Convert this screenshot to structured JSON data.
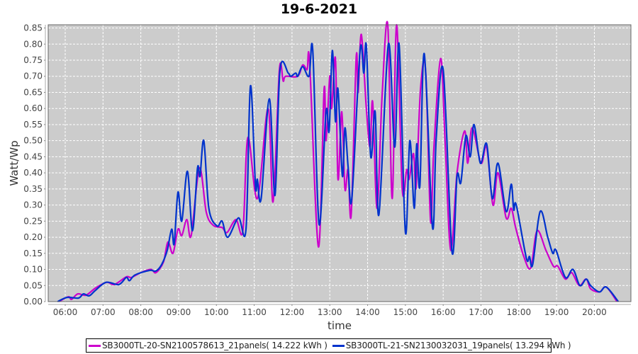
{
  "chart_data": {
    "type": "line",
    "title": "19-6-2021",
    "xlabel": "time",
    "ylabel": "Watt/Wp",
    "xlim": [
      "05:33",
      "20:58"
    ],
    "ylim": [
      0,
      0.86
    ],
    "x_ticks": [
      "06:00",
      "07:00",
      "08:00",
      "09:00",
      "10:00",
      "11:00",
      "12:00",
      "13:00",
      "14:00",
      "15:00",
      "16:00",
      "17:00",
      "18:00",
      "19:00",
      "20:00"
    ],
    "y_ticks": [
      "0.00",
      "0.05",
      "0.10",
      "0.15",
      "0.20",
      "0.25",
      "0.30",
      "0.35",
      "0.40",
      "0.45",
      "0.50",
      "0.55",
      "0.60",
      "0.65",
      "0.70",
      "0.75",
      "0.80",
      "0.85"
    ],
    "grid": true,
    "legend_position": "bottom",
    "plot_background": "#cccccc",
    "series": [
      {
        "name": "SB3000TL-20-SN2100578613_21panels( 14.222 kWh )",
        "color": "#cc00cc",
        "points": [
          [
            "05:50",
            0
          ],
          [
            "06:05",
            0.015
          ],
          [
            "06:10",
            0.007
          ],
          [
            "06:20",
            0.024
          ],
          [
            "06:33",
            0.02
          ],
          [
            "06:48",
            0.042
          ],
          [
            "07:06",
            0.06
          ],
          [
            "07:18",
            0.053
          ],
          [
            "07:37",
            0.077
          ],
          [
            "07:45",
            0.075
          ],
          [
            "08:00",
            0.09
          ],
          [
            "08:16",
            0.1
          ],
          [
            "08:24",
            0.09
          ],
          [
            "08:36",
            0.123
          ],
          [
            "08:43",
            0.185
          ],
          [
            "08:51",
            0.15
          ],
          [
            "08:59",
            0.225
          ],
          [
            "09:05",
            0.205
          ],
          [
            "09:13",
            0.255
          ],
          [
            "09:20",
            0.205
          ],
          [
            "09:33",
            0.415
          ],
          [
            "09:44",
            0.277
          ],
          [
            "09:55",
            0.237
          ],
          [
            "10:09",
            0.23
          ],
          [
            "10:17",
            0.215
          ],
          [
            "10:31",
            0.255
          ],
          [
            "10:42",
            0.22
          ],
          [
            "10:50",
            0.51
          ],
          [
            "11:05",
            0.32
          ],
          [
            "11:22",
            0.6
          ],
          [
            "11:30",
            0.31
          ],
          [
            "11:40",
            0.72
          ],
          [
            "11:46",
            0.685
          ],
          [
            "11:50",
            0.7
          ],
          [
            "12:09",
            0.7
          ],
          [
            "12:17",
            0.735
          ],
          [
            "12:24",
            0.72
          ],
          [
            "12:28",
            0.74
          ],
          [
            "12:42",
            0.17
          ],
          [
            "12:51",
            0.66
          ],
          [
            "12:54",
            0.5
          ],
          [
            "13:00",
            0.7
          ],
          [
            "13:03",
            0.6
          ],
          [
            "13:09",
            0.755
          ],
          [
            "13:13",
            0.38
          ],
          [
            "13:19",
            0.59
          ],
          [
            "13:24",
            0.35
          ],
          [
            "13:29",
            0.41
          ],
          [
            "13:34",
            0.27
          ],
          [
            "13:42",
            0.76
          ],
          [
            "13:45",
            0.65
          ],
          [
            "13:50",
            0.83
          ],
          [
            "13:58",
            0.6
          ],
          [
            "14:04",
            0.48
          ],
          [
            "14:08",
            0.62
          ],
          [
            "14:15",
            0.29
          ],
          [
            "14:23",
            0.64
          ],
          [
            "14:32",
            0.86
          ],
          [
            "14:39",
            0.32
          ],
          [
            "14:46",
            0.86
          ],
          [
            "14:55",
            0.35
          ],
          [
            "15:02",
            0.41
          ],
          [
            "15:06",
            0.38
          ],
          [
            "15:13",
            0.46
          ],
          [
            "15:17",
            0.355
          ],
          [
            "15:24",
            0.66
          ],
          [
            "15:32",
            0.72
          ],
          [
            "15:40",
            0.25
          ],
          [
            "15:45",
            0.47
          ],
          [
            "15:56",
            0.755
          ],
          [
            "16:03",
            0.5
          ],
          [
            "16:12",
            0.16
          ],
          [
            "16:22",
            0.4
          ],
          [
            "16:34",
            0.53
          ],
          [
            "16:39",
            0.43
          ],
          [
            "16:46",
            0.54
          ],
          [
            "17:00",
            0.43
          ],
          [
            "17:09",
            0.48
          ],
          [
            "17:19",
            0.3
          ],
          [
            "17:27",
            0.4
          ],
          [
            "17:40",
            0.26
          ],
          [
            "17:48",
            0.29
          ],
          [
            "17:55",
            0.23
          ],
          [
            "18:08",
            0.14
          ],
          [
            "18:19",
            0.105
          ],
          [
            "18:29",
            0.22
          ],
          [
            "18:43",
            0.16
          ],
          [
            "18:55",
            0.11
          ],
          [
            "19:02",
            0.11
          ],
          [
            "19:14",
            0.07
          ],
          [
            "19:24",
            0.09
          ],
          [
            "19:36",
            0.05
          ],
          [
            "19:47",
            0.07
          ],
          [
            "19:54",
            0.04
          ],
          [
            "20:08",
            0.03
          ],
          [
            "20:19",
            0.045
          ],
          [
            "20:36",
            0
          ]
        ]
      },
      {
        "name": "SB3000TL-21-SN2130032031_19panels( 13.294 kWh )",
        "color": "#0033cc",
        "points": [
          [
            "05:48",
            0
          ],
          [
            "06:03",
            0.013
          ],
          [
            "06:21",
            0.011
          ],
          [
            "06:29",
            0.024
          ],
          [
            "06:38",
            0.018
          ],
          [
            "06:48",
            0.035
          ],
          [
            "07:05",
            0.06
          ],
          [
            "07:25",
            0.053
          ],
          [
            "07:37",
            0.075
          ],
          [
            "07:42",
            0.065
          ],
          [
            "07:51",
            0.083
          ],
          [
            "08:14",
            0.097
          ],
          [
            "08:24",
            0.095
          ],
          [
            "08:33",
            0.115
          ],
          [
            "08:42",
            0.16
          ],
          [
            "08:49",
            0.225
          ],
          [
            "08:53",
            0.18
          ],
          [
            "08:59",
            0.34
          ],
          [
            "09:05",
            0.25
          ],
          [
            "09:14",
            0.405
          ],
          [
            "09:22",
            0.22
          ],
          [
            "09:30",
            0.415
          ],
          [
            "09:34",
            0.39
          ],
          [
            "09:40",
            0.5
          ],
          [
            "09:48",
            0.29
          ],
          [
            "10:01",
            0.235
          ],
          [
            "10:09",
            0.25
          ],
          [
            "10:18",
            0.2
          ],
          [
            "10:35",
            0.26
          ],
          [
            "10:47",
            0.225
          ],
          [
            "10:54",
            0.67
          ],
          [
            "11:02",
            0.36
          ],
          [
            "11:05",
            0.38
          ],
          [
            "11:11",
            0.32
          ],
          [
            "11:24",
            0.63
          ],
          [
            "11:33",
            0.33
          ],
          [
            "11:41",
            0.72
          ],
          [
            "11:54",
            0.71
          ],
          [
            "11:58",
            0.7
          ],
          [
            "12:06",
            0.71
          ],
          [
            "12:09",
            0.7
          ],
          [
            "12:17",
            0.73
          ],
          [
            "12:27",
            0.7
          ],
          [
            "12:33",
            0.78
          ],
          [
            "12:43",
            0.24
          ],
          [
            "12:54",
            0.59
          ],
          [
            "12:59",
            0.53
          ],
          [
            "13:04",
            0.78
          ],
          [
            "13:09",
            0.56
          ],
          [
            "13:13",
            0.66
          ],
          [
            "13:20",
            0.39
          ],
          [
            "13:24",
            0.54
          ],
          [
            "13:29",
            0.42
          ],
          [
            "13:35",
            0.32
          ],
          [
            "13:48",
            0.78
          ],
          [
            "13:54",
            0.71
          ],
          [
            "13:58",
            0.795
          ],
          [
            "14:05",
            0.45
          ],
          [
            "14:12",
            0.59
          ],
          [
            "14:18",
            0.27
          ],
          [
            "14:33",
            0.8
          ],
          [
            "14:43",
            0.48
          ],
          [
            "14:50",
            0.8
          ],
          [
            "15:00",
            0.215
          ],
          [
            "15:07",
            0.5
          ],
          [
            "15:14",
            0.29
          ],
          [
            "15:18",
            0.49
          ],
          [
            "15:23",
            0.36
          ],
          [
            "15:30",
            0.77
          ],
          [
            "15:43",
            0.23
          ],
          [
            "15:49",
            0.51
          ],
          [
            "16:00",
            0.72
          ],
          [
            "16:14",
            0.155
          ],
          [
            "16:22",
            0.39
          ],
          [
            "16:28",
            0.37
          ],
          [
            "16:36",
            0.515
          ],
          [
            "16:43",
            0.45
          ],
          [
            "16:49",
            0.55
          ],
          [
            "16:59",
            0.43
          ],
          [
            "17:09",
            0.49
          ],
          [
            "17:18",
            0.32
          ],
          [
            "17:27",
            0.43
          ],
          [
            "17:40",
            0.28
          ],
          [
            "17:48",
            0.365
          ],
          [
            "17:52",
            0.285
          ],
          [
            "17:56",
            0.3
          ],
          [
            "18:12",
            0.135
          ],
          [
            "18:17",
            0.14
          ],
          [
            "18:22",
            0.115
          ],
          [
            "18:34",
            0.28
          ],
          [
            "18:46",
            0.2
          ],
          [
            "18:54",
            0.15
          ],
          [
            "18:59",
            0.16
          ],
          [
            "19:14",
            0.075
          ],
          [
            "19:26",
            0.1
          ],
          [
            "19:37",
            0.05
          ],
          [
            "19:47",
            0.07
          ],
          [
            "19:54",
            0.05
          ],
          [
            "20:08",
            0.03
          ],
          [
            "20:19",
            0.045
          ],
          [
            "20:38",
            0
          ]
        ]
      }
    ]
  }
}
